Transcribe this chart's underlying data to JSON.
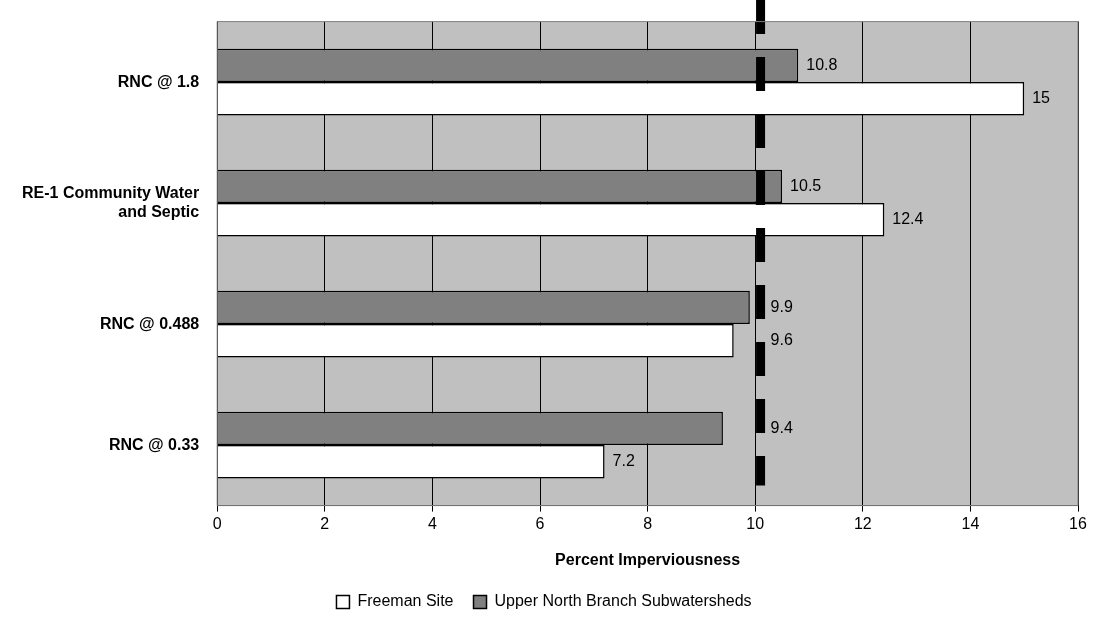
{
  "chart_data": {
    "type": "bar",
    "orientation": "horizontal",
    "categories": [
      "RNC @ 1.8",
      "RE-1 Community Water and Septic",
      "RNC @ 0.488",
      "RNC @ 0.33"
    ],
    "series": [
      {
        "name": "Freeman Site",
        "color": "#ffffff",
        "values": [
          15,
          12.4,
          9.6,
          7.2
        ]
      },
      {
        "name": "Upper North Branch Subwatersheds",
        "color": "#808080",
        "values": [
          10.8,
          10.5,
          9.9,
          9.4
        ]
      }
    ],
    "xlabel": "Percent Imperviousness",
    "xlim": [
      0,
      16
    ],
    "xticks": [
      0,
      2,
      4,
      6,
      8,
      10,
      12,
      14,
      16
    ],
    "grid": "x",
    "legend": "bottom",
    "data_labels": true,
    "ref_lines": [
      {
        "axis": "x",
        "value": 10.1,
        "color": "#000000",
        "line_style": "dashed"
      }
    ]
  }
}
